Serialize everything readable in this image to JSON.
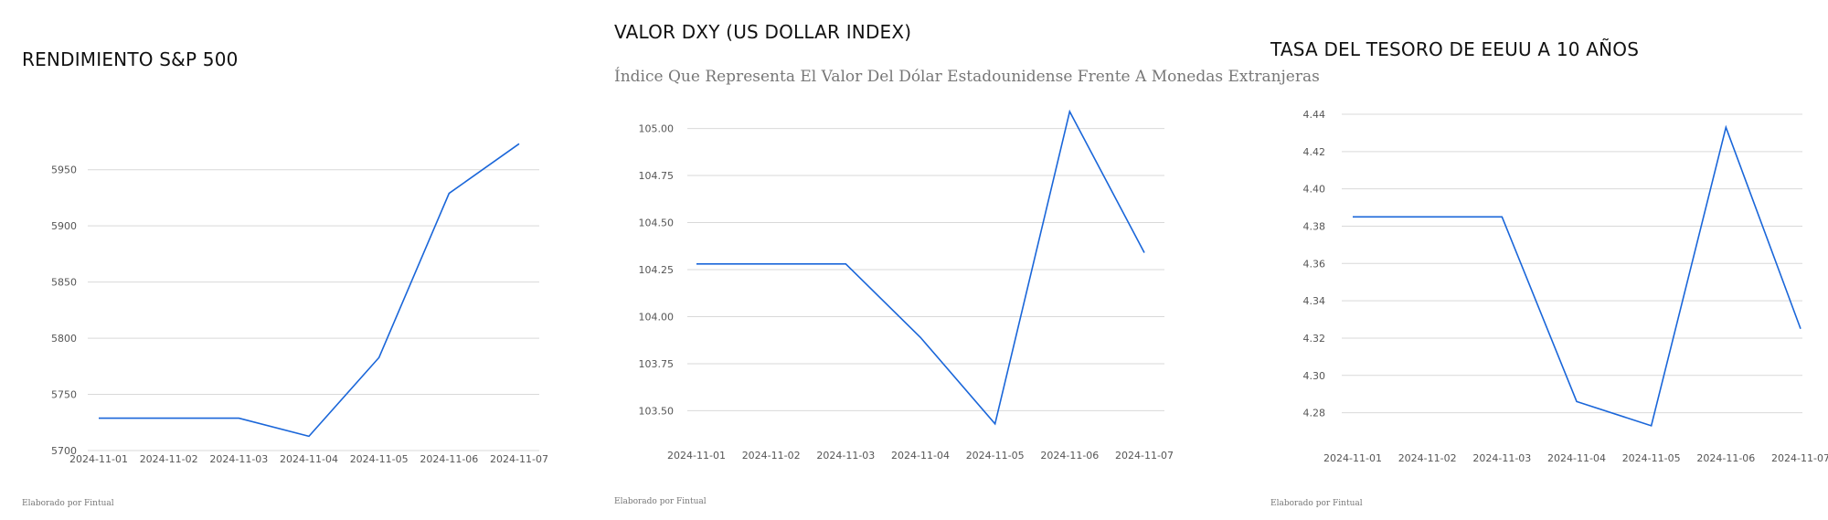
{
  "footer": {
    "credit": "Elaborado por Fintual"
  },
  "chart_data": [
    {
      "type": "line",
      "title": "RENDIMIENTO S&P 500",
      "subtitle": "",
      "x": [
        "2024-11-01",
        "2024-11-02",
        "2024-11-03",
        "2024-11-04",
        "2024-11-05",
        "2024-11-06",
        "2024-11-07"
      ],
      "series": [
        {
          "values": [
            5728.8,
            5728.8,
            5728.8,
            5712.7,
            5782.8,
            5929.0,
            5973.1
          ]
        }
      ],
      "yticks": [
        5700,
        5750,
        5800,
        5850,
        5900,
        5950
      ],
      "ylim": [
        5700,
        5975
      ],
      "grid": true,
      "line_color": "#1a66d9"
    },
    {
      "type": "line",
      "title": "VALOR DXY (US DOLLAR INDEX)",
      "subtitle": "Índice Que Representa El Valor Del Dólar Estadounidense Frente A Monedas Extranjeras",
      "x": [
        "2024-11-01",
        "2024-11-02",
        "2024-11-03",
        "2024-11-04",
        "2024-11-05",
        "2024-11-06",
        "2024-11-07"
      ],
      "series": [
        {
          "values": [
            104.28,
            104.28,
            104.28,
            103.89,
            103.43,
            105.09,
            104.34
          ]
        }
      ],
      "yticks": [
        103.5,
        103.75,
        104.0,
        104.25,
        104.5,
        104.75,
        105.0
      ],
      "ylim": [
        103.4,
        105.1
      ],
      "grid": true,
      "line_color": "#1a66d9"
    },
    {
      "type": "line",
      "title": "TASA DEL TESORO DE EEUU A 10 AÑOS",
      "subtitle": "",
      "x": [
        "2024-11-01",
        "2024-11-02",
        "2024-11-03",
        "2024-11-04",
        "2024-11-05",
        "2024-11-06",
        "2024-11-07"
      ],
      "series": [
        {
          "values": [
            4.385,
            4.385,
            4.385,
            4.286,
            4.273,
            4.433,
            4.325
          ]
        }
      ],
      "yticks": [
        4.28,
        4.3,
        4.32,
        4.34,
        4.36,
        4.38,
        4.4,
        4.42,
        4.44
      ],
      "ylim": [
        4.27,
        4.44
      ],
      "grid": true,
      "line_color": "#1a66d9"
    }
  ]
}
